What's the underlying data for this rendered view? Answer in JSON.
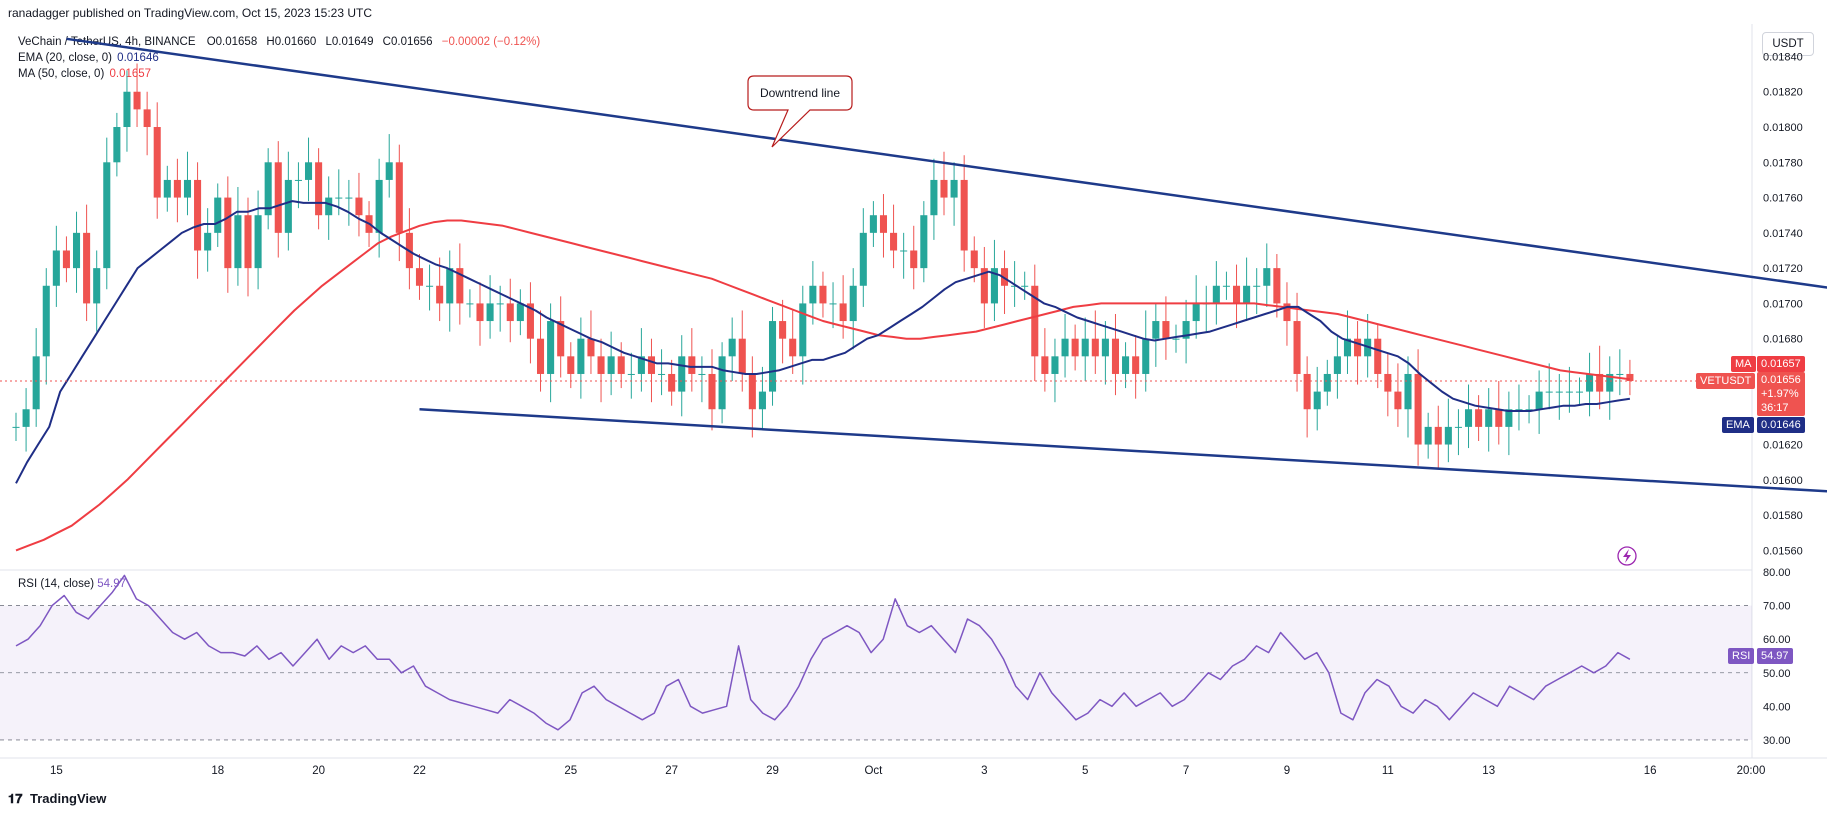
{
  "header": {
    "text": "ranadagger published on TradingView.com, Oct 15, 2023 15:23 UTC"
  },
  "symbol": {
    "name": "VeChain / TetherUS, 4h, BINANCE",
    "open": "O0.01658",
    "high": "H0.01660",
    "low": "L0.01649",
    "close": "C0.01656",
    "change": "−0.00002 (−0.12%)"
  },
  "indicators": {
    "ema_label": "EMA (20, close, 0)",
    "ema_value": "0.01646",
    "ma_label": "MA (50, close, 0)",
    "ma_value": "0.01657",
    "rsi_label": "RSI (14, close)",
    "rsi_value": "54.97"
  },
  "price_axis": {
    "currency": "USDT",
    "ma_tag": "MA",
    "ma_price": "0.01657",
    "ticker_tag": "VETUSDT",
    "last_price": "0.01656",
    "last_change": "+1.97%",
    "countdown": "36:17",
    "ema_tag": "EMA",
    "ema_price": "0.01646",
    "rsi_tag": "RSI",
    "rsi_price": "54.97"
  },
  "annotation": {
    "text": "Downtrend line"
  },
  "footer": {
    "brand": "TradingView"
  },
  "colors": {
    "up": "#26a69a",
    "down": "#ef5350",
    "ema": "#1f2e86",
    "ma": "#ef3d43",
    "trend": "#1e3a8a",
    "rsi": "#7e57c2"
  },
  "chart_data": {
    "type": "candlestick",
    "title": "VeChain / TetherUS, 4h, BINANCE",
    "price_range": [
      0.0155,
      0.01855
    ],
    "price_ticks": [
      "0.01840",
      "0.01820",
      "0.01800",
      "0.01780",
      "0.01760",
      "0.01740",
      "0.01720",
      "0.01700",
      "0.01680",
      "0.01620",
      "0.01600",
      "0.01580",
      "0.01560"
    ],
    "price_tick_values": [
      0.0184,
      0.0182,
      0.018,
      0.0178,
      0.0176,
      0.0174,
      0.0172,
      0.017,
      0.0168,
      0.0162,
      0.016,
      0.0158,
      0.0156
    ],
    "time_labels": [
      "15",
      "18",
      "20",
      "22",
      "25",
      "27",
      "29",
      "Oct",
      "3",
      "5",
      "7",
      "9",
      "11",
      "13",
      "16",
      "20:00"
    ],
    "time_label_candles": [
      4,
      20,
      30,
      40,
      55,
      65,
      75,
      85,
      96,
      106,
      116,
      126,
      136,
      146,
      162,
      172
    ],
    "rsi_range": [
      27,
      80
    ],
    "rsi_ticks": [
      "80.00",
      "70.00",
      "60.00",
      "50.00",
      "40.00",
      "30.00"
    ],
    "rsi_tick_values": [
      80,
      70,
      60,
      50,
      40,
      30
    ],
    "rsi_bands": [
      70,
      50,
      30
    ],
    "close": [
      0.0163,
      0.0164,
      0.0167,
      0.0171,
      0.0173,
      0.0172,
      0.0174,
      0.017,
      0.0172,
      0.0178,
      0.018,
      0.0182,
      0.0181,
      0.018,
      0.0176,
      0.0177,
      0.0176,
      0.0177,
      0.0173,
      0.0174,
      0.0176,
      0.0172,
      0.0175,
      0.0172,
      0.0175,
      0.0178,
      0.0174,
      0.0177,
      0.0177,
      0.0178,
      0.0175,
      0.0176,
      0.0176,
      0.0176,
      0.0175,
      0.0174,
      0.0177,
      0.0178,
      0.0174,
      0.0172,
      0.0171,
      0.0171,
      0.017,
      0.0172,
      0.017,
      0.017,
      0.0169,
      0.017,
      0.017,
      0.0169,
      0.017,
      0.0168,
      0.0166,
      0.0169,
      0.0167,
      0.0166,
      0.0168,
      0.0167,
      0.0166,
      0.0167,
      0.0166,
      0.0166,
      0.0167,
      0.0166,
      0.0166,
      0.0165,
      0.0167,
      0.0166,
      0.0166,
      0.0164,
      0.0167,
      0.0168,
      0.0166,
      0.0164,
      0.0165,
      0.0169,
      0.0168,
      0.0167,
      0.017,
      0.0171,
      0.017,
      0.017,
      0.0169,
      0.0171,
      0.0174,
      0.0175,
      0.0174,
      0.0173,
      0.0173,
      0.0172,
      0.0175,
      0.0177,
      0.0176,
      0.0177,
      0.0173,
      0.0172,
      0.017,
      0.0172,
      0.0171,
      0.0171,
      0.0171,
      0.0167,
      0.0166,
      0.0167,
      0.0168,
      0.0167,
      0.0168,
      0.0167,
      0.0168,
      0.0166,
      0.0167,
      0.0166,
      0.0168,
      0.0169,
      0.0168,
      0.0168,
      0.0169,
      0.017,
      0.017,
      0.0171,
      0.0171,
      0.017,
      0.0171,
      0.0171,
      0.0172,
      0.017,
      0.0169,
      0.0166,
      0.0164,
      0.0165,
      0.0166,
      0.0167,
      0.0168,
      0.0167,
      0.0168,
      0.0166,
      0.0165,
      0.0164,
      0.0166,
      0.0162,
      0.0163,
      0.0162,
      0.0163,
      0.0163,
      0.0164,
      0.0163,
      0.0164,
      0.0163,
      0.0164,
      0.0164,
      0.0164,
      0.0165,
      0.0165,
      0.0165,
      0.0165,
      0.0165,
      0.0166,
      0.0165,
      0.0166,
      0.0166,
      0.01656
    ],
    "ema20": [
      0.01598,
      0.0161,
      0.0162,
      0.0163,
      0.0165,
      0.0166,
      0.0167,
      0.0168,
      0.0169,
      0.017,
      0.0171,
      0.0172,
      0.01725,
      0.0173,
      0.01735,
      0.0174,
      0.01743,
      0.01745,
      0.01745,
      0.01748,
      0.01752,
      0.01752,
      0.01754,
      0.01754,
      0.01756,
      0.01758,
      0.01757,
      0.01757,
      0.01757,
      0.01755,
      0.01752,
      0.01748,
      0.01745,
      0.0174,
      0.01736,
      0.01732,
      0.01728,
      0.01725,
      0.01722,
      0.0172,
      0.01717,
      0.01714,
      0.01711,
      0.01708,
      0.01705,
      0.01702,
      0.01699,
      0.01696,
      0.01692,
      0.01689,
      0.01686,
      0.01683,
      0.0168,
      0.01678,
      0.01675,
      0.01672,
      0.0167,
      0.01668,
      0.01666,
      0.01666,
      0.01665,
      0.01664,
      0.01664,
      0.01664,
      0.01662,
      0.01661,
      0.0166,
      0.0166,
      0.01661,
      0.01662,
      0.01664,
      0.01666,
      0.01668,
      0.01668,
      0.0167,
      0.01672,
      0.01676,
      0.0168,
      0.01682,
      0.01686,
      0.0169,
      0.01694,
      0.01698,
      0.01703,
      0.01708,
      0.01712,
      0.01714,
      0.01716,
      0.01718,
      0.01716,
      0.01712,
      0.01708,
      0.01704,
      0.017,
      0.01698,
      0.01695,
      0.01692,
      0.0169,
      0.01688,
      0.01686,
      0.01684,
      0.01682,
      0.0168,
      0.01679,
      0.0168,
      0.01681,
      0.01682,
      0.01683,
      0.01684,
      0.01686,
      0.01688,
      0.0169,
      0.01692,
      0.01694,
      0.01696,
      0.01698,
      0.01698,
      0.01694,
      0.0169,
      0.01684,
      0.0168,
      0.01678,
      0.01676,
      0.01674,
      0.01672,
      0.0167,
      0.01666,
      0.0166,
      0.01655,
      0.0165,
      0.01646,
      0.01644,
      0.01642,
      0.01641,
      0.0164,
      0.01639,
      0.01639,
      0.01639,
      0.0164,
      0.01641,
      0.01642,
      0.01642,
      0.01643,
      0.01643,
      0.01644,
      0.01645,
      0.01646
    ],
    "ma50": [
      0.0156,
      0.01563,
      0.01566,
      0.0157,
      0.01574,
      0.0158,
      0.01586,
      0.01593,
      0.016,
      0.01608,
      0.01616,
      0.01624,
      0.01632,
      0.0164,
      0.01648,
      0.01656,
      0.01664,
      0.01672,
      0.0168,
      0.01688,
      0.01696,
      0.01703,
      0.0171,
      0.01716,
      0.01722,
      0.01728,
      0.01734,
      0.01738,
      0.01741,
      0.01744,
      0.01746,
      0.01747,
      0.01747,
      0.01746,
      0.01745,
      0.01744,
      0.01742,
      0.0174,
      0.01738,
      0.01736,
      0.01734,
      0.01732,
      0.0173,
      0.01728,
      0.01726,
      0.01724,
      0.01722,
      0.0172,
      0.01718,
      0.01716,
      0.01714,
      0.01711,
      0.01708,
      0.01705,
      0.01702,
      0.01699,
      0.01696,
      0.01693,
      0.0169,
      0.01688,
      0.01686,
      0.01684,
      0.01682,
      0.01681,
      0.0168,
      0.0168,
      0.01681,
      0.01682,
      0.01683,
      0.01684,
      0.01686,
      0.01688,
      0.0169,
      0.01692,
      0.01694,
      0.01696,
      0.01698,
      0.01699,
      0.017,
      0.017,
      0.017,
      0.017,
      0.017,
      0.017,
      0.017,
      0.017,
      0.017,
      0.017,
      0.017,
      0.017,
      0.01699,
      0.01698,
      0.01697,
      0.01696,
      0.01695,
      0.01694,
      0.01692,
      0.0169,
      0.01688,
      0.01686,
      0.01684,
      0.01682,
      0.0168,
      0.01678,
      0.01676,
      0.01674,
      0.01672,
      0.0167,
      0.01668,
      0.01666,
      0.01664,
      0.01662,
      0.01661,
      0.0166,
      0.01659,
      0.01658,
      0.01657
    ],
    "rsi": [
      58,
      60,
      64,
      70,
      73,
      68,
      66,
      70,
      74,
      79,
      72,
      70,
      66,
      62,
      60,
      62,
      58,
      56,
      56,
      55,
      58,
      54,
      56,
      52,
      56,
      60,
      54,
      58,
      56,
      58,
      54,
      54,
      50,
      52,
      46,
      44,
      42,
      41,
      40,
      39,
      38,
      42,
      40,
      38,
      35,
      33,
      36,
      44,
      46,
      42,
      40,
      38,
      36,
      38,
      46,
      48,
      40,
      38,
      39,
      40,
      58,
      42,
      38,
      36,
      40,
      46,
      54,
      60,
      62,
      64,
      62,
      56,
      60,
      72,
      64,
      62,
      64,
      60,
      56,
      66,
      64,
      60,
      54,
      46,
      42,
      50,
      44,
      40,
      36,
      38,
      42,
      40,
      44,
      40,
      42,
      44,
      40,
      42,
      46,
      50,
      48,
      52,
      54,
      58,
      56,
      62,
      58,
      54,
      56,
      50,
      38,
      36,
      44,
      48,
      46,
      40,
      38,
      42,
      40,
      36,
      40,
      44,
      42,
      40,
      46,
      44,
      42,
      46,
      48,
      50,
      52,
      50,
      52,
      56,
      54
    ],
    "downtrend_line": {
      "from": [
        5,
        0.0185
      ],
      "to": [
        187,
        0.01703
      ]
    },
    "support_line": {
      "from": [
        40,
        0.0164
      ],
      "to": [
        184,
        0.01592
      ]
    },
    "current_price": 0.01656
  }
}
